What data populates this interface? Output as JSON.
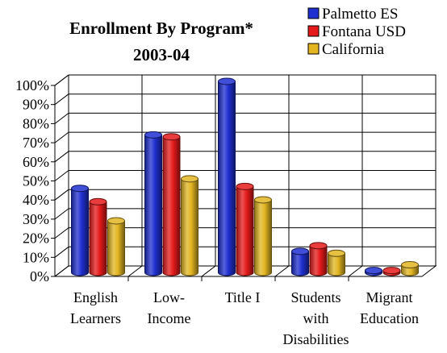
{
  "chart_data": {
    "type": "bar",
    "title": "Enrollment By Program*",
    "subtitle": "2003-04",
    "categories": [
      [
        "English",
        "Learners"
      ],
      [
        "Low-",
        "Income"
      ],
      [
        "Title I"
      ],
      [
        "Students",
        "with",
        "Disabilities"
      ],
      [
        "Migrant",
        "Education"
      ]
    ],
    "series": [
      {
        "name": "Palmetto ES",
        "color": "#1f2fd0",
        "values": [
          44,
          72,
          100,
          11,
          1
        ]
      },
      {
        "name": "Fontana USD",
        "color": "#e51a1a",
        "values": [
          37,
          71,
          45,
          14,
          1
        ]
      },
      {
        "name": "California",
        "color": "#e2b521",
        "values": [
          27,
          49,
          38,
          10,
          4
        ]
      }
    ],
    "ylim": [
      0,
      100
    ],
    "ytick_step": 10,
    "ytick_suffix": "%",
    "grid": true,
    "legend_position": "top-right",
    "style": "3d-cylinder"
  }
}
